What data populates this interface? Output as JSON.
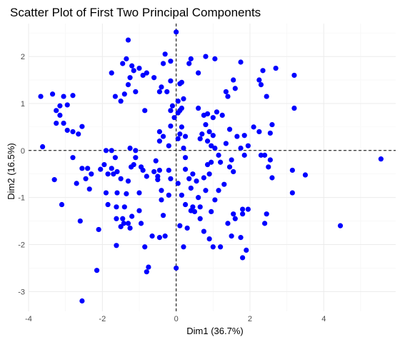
{
  "chart_data": {
    "type": "scatter",
    "title": "Scatter Plot of First Two Principal Components",
    "xlabel": "Dim1 (36.7%)",
    "ylabel": "Dim2 (16.5%)",
    "xlim": [
      -4.0,
      5.95
    ],
    "ylim": [
      -3.42,
      2.7
    ],
    "x_ticks": [
      -4,
      -2,
      0,
      2,
      4
    ],
    "y_ticks": [
      -3,
      -2,
      -1,
      0,
      1,
      2
    ],
    "grid": true,
    "reference_lines": {
      "x": 0,
      "y": 0,
      "style": "dashed"
    },
    "point_color": "#0000ff",
    "points": [
      [
        -3.67,
        1.15
      ],
      [
        -3.35,
        1.2
      ],
      [
        -3.05,
        1.15
      ],
      [
        -2.8,
        1.17
      ],
      [
        -3.15,
        0.95
      ],
      [
        -2.95,
        0.97
      ],
      [
        -3.25,
        0.85
      ],
      [
        -3.15,
        0.75
      ],
      [
        -3.25,
        0.58
      ],
      [
        -3.05,
        0.58
      ],
      [
        -2.95,
        0.43
      ],
      [
        -2.8,
        0.4
      ],
      [
        -2.55,
        0.51
      ],
      [
        -2.65,
        0.35
      ],
      [
        -3.62,
        0.08
      ],
      [
        -2.8,
        -0.15
      ],
      [
        -3.3,
        -0.62
      ],
      [
        -3.1,
        -1.15
      ],
      [
        -2.7,
        -0.7
      ],
      [
        -2.55,
        -0.38
      ],
      [
        -2.45,
        -0.6
      ],
      [
        -2.4,
        -0.38
      ],
      [
        -2.3,
        -0.5
      ],
      [
        -2.6,
        -1.5
      ],
      [
        -2.35,
        -0.82
      ],
      [
        -2.05,
        -0.4
      ],
      [
        -1.95,
        -0.3
      ],
      [
        -1.85,
        -0.5
      ],
      [
        -1.9,
        -0.9
      ],
      [
        -1.85,
        -1.15
      ],
      [
        -1.75,
        -0.38
      ],
      [
        -1.7,
        -0.5
      ],
      [
        -1.9,
        0.0
      ],
      [
        -1.75,
        0.0
      ],
      [
        -1.65,
        -0.15
      ],
      [
        -1.6,
        -0.45
      ],
      [
        -1.5,
        -0.6
      ],
      [
        -1.6,
        -0.9
      ],
      [
        -1.4,
        -1.2
      ],
      [
        -1.35,
        -0.92
      ],
      [
        -1.3,
        -0.65
      ],
      [
        -1.22,
        -0.35
      ],
      [
        -1.15,
        -0.3
      ],
      [
        -1.1,
        -0.15
      ],
      [
        -1.0,
        -0.9
      ],
      [
        -0.9,
        -0.42
      ],
      [
        -0.95,
        -0.35
      ],
      [
        -1.25,
        0.05
      ],
      [
        -1.1,
        -0.0
      ],
      [
        -0.8,
        -0.55
      ],
      [
        -0.6,
        -0.45
      ],
      [
        -0.5,
        -0.55
      ],
      [
        -0.45,
        -0.42
      ],
      [
        -0.55,
        -0.22
      ],
      [
        -0.5,
        -0.62
      ],
      [
        -0.4,
        -0.85
      ],
      [
        -0.2,
        -0.42
      ],
      [
        -0.4,
        -1.05
      ],
      [
        -0.35,
        -1.38
      ],
      [
        -0.2,
        -0.95
      ],
      [
        -0.15,
        -0.6
      ],
      [
        -1.2,
        -1.4
      ],
      [
        -1.0,
        -1.28
      ],
      [
        -1.42,
        -1.55
      ],
      [
        -1.62,
        -1.2
      ],
      [
        -1.62,
        -1.45
      ],
      [
        -1.45,
        -1.45
      ],
      [
        -1.25,
        -1.65
      ],
      [
        -1.3,
        -1.55
      ],
      [
        -0.95,
        -1.55
      ],
      [
        -0.65,
        -1.82
      ],
      [
        -0.45,
        -1.85
      ],
      [
        -0.3,
        -1.82
      ],
      [
        -0.85,
        -2.05
      ],
      [
        -1.5,
        -1.62
      ],
      [
        -2.1,
        -1.68
      ],
      [
        -1.62,
        -2.02
      ],
      [
        -0.75,
        -2.48
      ],
      [
        -0.8,
        -2.58
      ],
      [
        -2.15,
        -2.55
      ],
      [
        -2.55,
        -3.2
      ],
      [
        -1.3,
        2.35
      ],
      [
        -1.35,
        1.95
      ],
      [
        -1.2,
        1.8
      ],
      [
        -1.15,
        1.7
      ],
      [
        -1.0,
        1.75
      ],
      [
        -0.9,
        1.6
      ],
      [
        -0.8,
        1.65
      ],
      [
        -1.45,
        1.85
      ],
      [
        -1.75,
        1.65
      ],
      [
        -1.65,
        1.15
      ],
      [
        -1.5,
        1.05
      ],
      [
        -1.4,
        1.2
      ],
      [
        -1.3,
        1.4
      ],
      [
        -1.25,
        1.55
      ],
      [
        -1.1,
        1.25
      ],
      [
        -0.85,
        0.85
      ],
      [
        -0.6,
        1.55
      ],
      [
        -0.4,
        1.35
      ],
      [
        -0.25,
        1.25
      ],
      [
        -0.45,
        1.25
      ],
      [
        -0.3,
        2.05
      ],
      [
        -0.35,
        1.85
      ],
      [
        -0.15,
        1.9
      ],
      [
        -0.15,
        1.48
      ],
      [
        0.0,
        2.52
      ],
      [
        -0.45,
        0.4
      ],
      [
        -0.35,
        0.3
      ],
      [
        -0.15,
        0.52
      ],
      [
        -0.05,
        0.7
      ],
      [
        -0.45,
        0.2
      ],
      [
        -0.2,
        0.1
      ],
      [
        -0.15,
        0.85
      ],
      [
        -0.1,
        0.95
      ],
      [
        0.1,
        0.85
      ],
      [
        0.15,
        0.5
      ],
      [
        0.25,
        0.3
      ],
      [
        0.2,
        0.05
      ],
      [
        0.25,
        -0.15
      ],
      [
        0.05,
        0.8
      ],
      [
        0.1,
        0.35
      ],
      [
        0.05,
        0.25
      ],
      [
        0.15,
        0.9
      ],
      [
        0.05,
        1.05
      ],
      [
        0.2,
        1.1
      ],
      [
        0.1,
        1.42
      ],
      [
        0.15,
        1.45
      ],
      [
        0.35,
        1.85
      ],
      [
        0.4,
        1.95
      ],
      [
        0.6,
        1.65
      ],
      [
        0.8,
        2.0
      ],
      [
        1.05,
        1.95
      ],
      [
        0.6,
        0.9
      ],
      [
        0.75,
        0.75
      ],
      [
        0.85,
        0.78
      ],
      [
        0.8,
        0.55
      ],
      [
        0.9,
        0.4
      ],
      [
        1.0,
        0.32
      ],
      [
        1.1,
        0.82
      ],
      [
        1.25,
        0.75
      ],
      [
        1.0,
        0.7
      ],
      [
        0.65,
        0.25
      ],
      [
        0.7,
        0.35
      ],
      [
        0.85,
        0.2
      ],
      [
        0.95,
        0.1
      ],
      [
        1.05,
        0.05
      ],
      [
        1.15,
        -0.1
      ],
      [
        1.2,
        -0.25
      ],
      [
        1.35,
        0.15
      ],
      [
        1.5,
        -0.2
      ],
      [
        1.55,
        -0.45
      ],
      [
        1.45,
        -0.35
      ],
      [
        1.4,
        1.15
      ],
      [
        1.35,
        1.25
      ],
      [
        1.55,
        1.5
      ],
      [
        1.6,
        1.32
      ],
      [
        1.75,
        1.88
      ],
      [
        1.45,
        0.45
      ],
      [
        1.65,
        0.3
      ],
      [
        1.85,
        0.32
      ],
      [
        1.75,
        0.05
      ],
      [
        1.85,
        -0.1
      ],
      [
        1.95,
        0.1
      ],
      [
        2.1,
        0.5
      ],
      [
        2.25,
        0.4
      ],
      [
        2.25,
        1.5
      ],
      [
        2.3,
        1.4
      ],
      [
        2.35,
        1.7
      ],
      [
        2.45,
        1.15
      ],
      [
        2.7,
        1.75
      ],
      [
        2.6,
        0.55
      ],
      [
        2.55,
        0.37
      ],
      [
        2.3,
        -0.1
      ],
      [
        2.4,
        -0.1
      ],
      [
        2.55,
        -0.2
      ],
      [
        2.6,
        -0.58
      ],
      [
        2.5,
        -0.35
      ],
      [
        2.45,
        -1.35
      ],
      [
        2.4,
        -1.55
      ],
      [
        1.95,
        -1.25
      ],
      [
        1.8,
        -1.25
      ],
      [
        1.8,
        -1.35
      ],
      [
        1.6,
        -1.45
      ],
      [
        1.55,
        -1.35
      ],
      [
        1.4,
        -1.55
      ],
      [
        1.5,
        -1.82
      ],
      [
        1.75,
        -1.85
      ],
      [
        1.9,
        -2.12
      ],
      [
        1.8,
        -2.28
      ],
      [
        1.2,
        -2.05
      ],
      [
        1.0,
        -2.05
      ],
      [
        0.9,
        -1.88
      ],
      [
        0.75,
        -1.72
      ],
      [
        0.65,
        -1.45
      ],
      [
        0.65,
        -1.2
      ],
      [
        0.6,
        -1.0
      ],
      [
        0.55,
        -0.65
      ],
      [
        0.45,
        -0.5
      ],
      [
        0.4,
        -0.8
      ],
      [
        0.35,
        -0.6
      ],
      [
        0.25,
        -0.4
      ],
      [
        0.15,
        -0.95
      ],
      [
        0.05,
        -0.7
      ],
      [
        0.25,
        -1.15
      ],
      [
        0.5,
        -1.3
      ],
      [
        0.45,
        -1.2
      ],
      [
        0.4,
        -1.28
      ],
      [
        0.3,
        -1.65
      ],
      [
        0.1,
        -1.6
      ],
      [
        0.2,
        -2.05
      ],
      [
        0.0,
        -2.5
      ],
      [
        0.95,
        -1.3
      ],
      [
        1.05,
        -1.05
      ],
      [
        1.15,
        -0.85
      ],
      [
        1.3,
        -0.72
      ],
      [
        0.9,
        -0.5
      ],
      [
        0.85,
        -0.3
      ],
      [
        0.75,
        -0.58
      ],
      [
        0.8,
        -0.85
      ],
      [
        0.95,
        -0.25
      ],
      [
        3.2,
        1.6
      ],
      [
        3.2,
        0.9
      ],
      [
        3.15,
        -0.42
      ],
      [
        3.15,
        -0.9
      ],
      [
        3.5,
        -0.52
      ],
      [
        4.45,
        -1.6
      ],
      [
        5.55,
        -0.18
      ]
    ]
  }
}
